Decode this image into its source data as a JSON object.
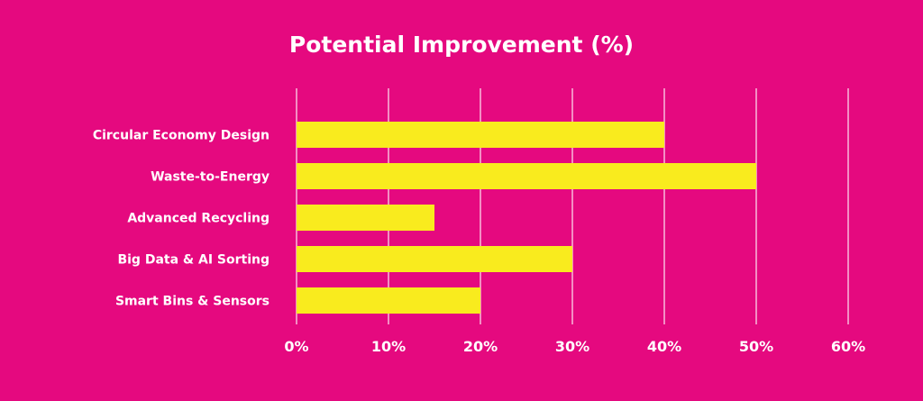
{
  "chart_data": {
    "type": "bar",
    "orientation": "horizontal",
    "title": "Potential Improvement (%)",
    "categories": [
      "Circular Economy Design",
      "Waste-to-Energy",
      "Advanced Recycling",
      "Big Data & AI Sorting",
      "Smart Bins & Sensors"
    ],
    "values": [
      40,
      50,
      15,
      30,
      20
    ],
    "xlim": [
      0,
      60
    ],
    "xticks": [
      "0%",
      "10%",
      "20%",
      "30%",
      "40%",
      "50%",
      "60%"
    ],
    "grid": "vertical",
    "colors": {
      "background": "#E5097F",
      "bar": "#F9EB1E",
      "text": "#FFFFFF",
      "grid": "#FFFFFF"
    }
  }
}
